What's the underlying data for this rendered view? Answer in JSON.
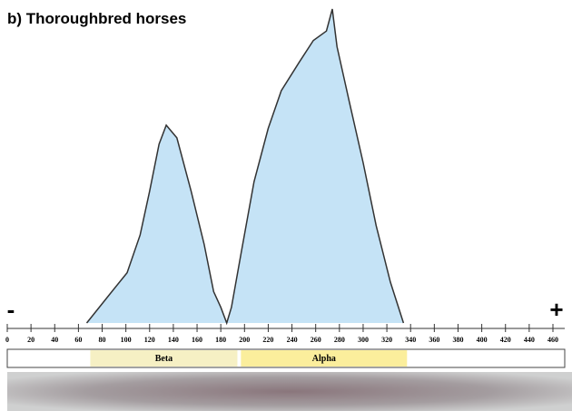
{
  "chart_data": {
    "type": "area",
    "title": "b) Thoroughbred horses",
    "x": [
      67,
      86,
      101,
      112,
      120,
      128,
      134,
      143,
      155,
      166,
      174,
      180,
      185,
      189,
      197,
      208,
      220,
      231,
      246,
      258,
      269,
      274,
      278,
      288,
      300,
      311,
      323,
      334
    ],
    "values": [
      0,
      9,
      16,
      28,
      42,
      57,
      63,
      59,
      42,
      25,
      10,
      5,
      0,
      5,
      22,
      45,
      62,
      74,
      83,
      90,
      93,
      100,
      88,
      71,
      51,
      31,
      13,
      0
    ],
    "color": "#c5e3f6",
    "line_color": "#333333",
    "xlim": [
      0,
      460
    ],
    "xticks": [
      0,
      20,
      40,
      60,
      80,
      100,
      120,
      140,
      160,
      180,
      200,
      220,
      240,
      260,
      280,
      300,
      320,
      340,
      360,
      380,
      400,
      420,
      440,
      460
    ],
    "ylim": [
      0,
      100
    ],
    "bands": [
      {
        "label": "Beta",
        "range": [
          70,
          194
        ],
        "color": "#f6f0c4"
      },
      {
        "label": "Alpha",
        "range": [
          197,
          337
        ],
        "color": "#fbee9c"
      }
    ],
    "annotations": [
      {
        "text": "-",
        "x": 0
      },
      {
        "text": "+",
        "x": 460
      }
    ]
  }
}
